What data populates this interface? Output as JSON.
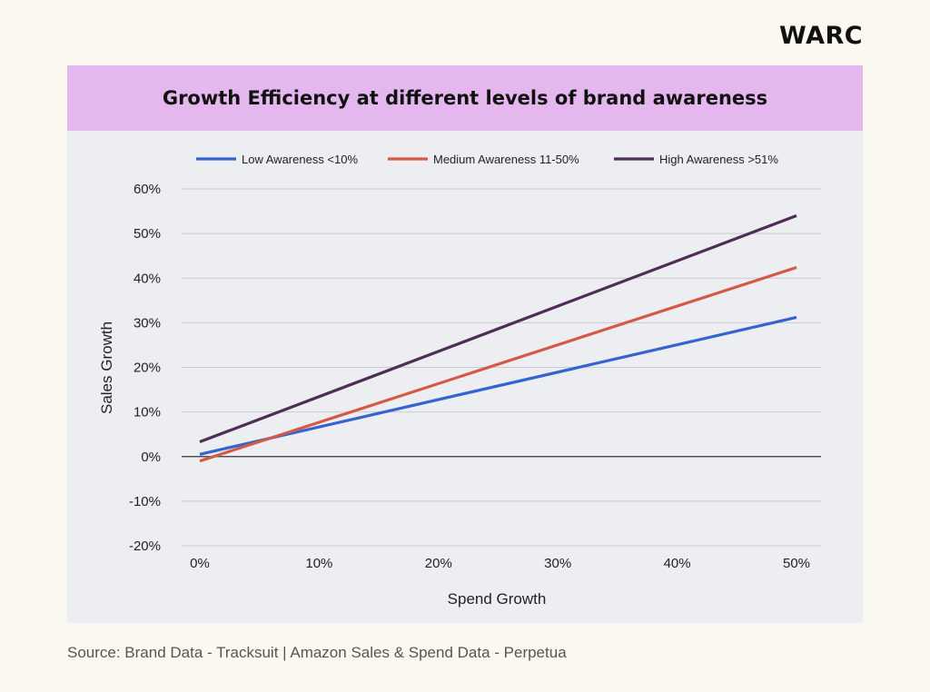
{
  "brand": {
    "logo_text": "WARC"
  },
  "source_note": "Source: Brand Data - Tracksuit | Amazon Sales & Spend Data - Perpetua",
  "colors": {
    "header_bg": "#e4b7ef",
    "plot_bg": "#eceef2",
    "low": "#3563d0",
    "medium": "#d55a43",
    "high": "#4e2d57"
  },
  "chart_data": {
    "type": "line",
    "title": "Growth Efficiency at different levels of brand awareness",
    "xlabel": "Spend Growth",
    "ylabel": "Sales Growth",
    "xlim": [
      0,
      50
    ],
    "ylim": [
      -20,
      60
    ],
    "x_ticks": [
      0,
      10,
      20,
      30,
      40,
      50
    ],
    "x_tick_labels": [
      "0%",
      "10%",
      "20%",
      "30%",
      "40%",
      "50%"
    ],
    "y_ticks": [
      -20,
      -10,
      0,
      10,
      20,
      30,
      40,
      50,
      60
    ],
    "y_tick_labels": [
      "-20%",
      "-10%",
      "0%",
      "10%",
      "20%",
      "30%",
      "40%",
      "50%",
      "60%"
    ],
    "grid": true,
    "legend_position": "top",
    "series": [
      {
        "name": "Low Awareness <10%",
        "color": "#3563d0",
        "x": [
          0,
          50
        ],
        "y": [
          0.5,
          31.2
        ]
      },
      {
        "name": "Medium Awareness 11-50%",
        "color": "#d55a43",
        "x": [
          0,
          50
        ],
        "y": [
          -1.0,
          42.4
        ]
      },
      {
        "name": "High Awareness >51%",
        "color": "#4e2d57",
        "x": [
          0,
          50
        ],
        "y": [
          3.3,
          54.0
        ]
      }
    ]
  }
}
